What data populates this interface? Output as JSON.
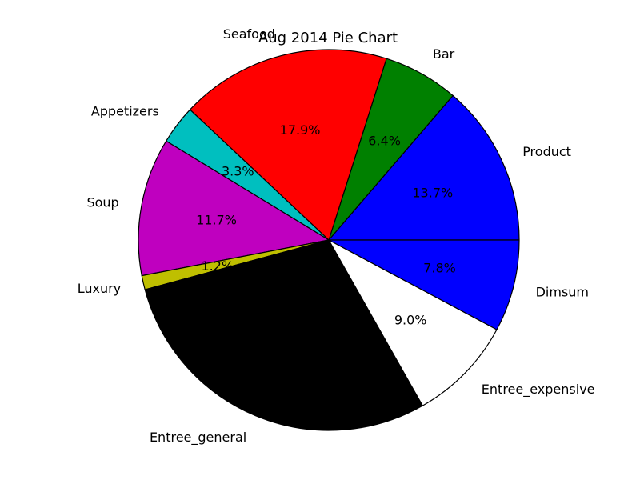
{
  "chart_data": {
    "type": "pie",
    "title": "Aug 2014 Pie Chart",
    "start_angle_deg": 0,
    "direction": "counterclockwise",
    "slices": [
      {
        "label": "Product",
        "value": 13.7,
        "pct_label": "13.7%",
        "color": "#0000ff"
      },
      {
        "label": "Bar",
        "value": 6.4,
        "pct_label": "6.4%",
        "color": "#008000"
      },
      {
        "label": "Seafood",
        "value": 17.9,
        "pct_label": "17.9%",
        "color": "#ff0000"
      },
      {
        "label": "Appetizers",
        "value": 3.3,
        "pct_label": "3.3%",
        "color": "#00bfbf"
      },
      {
        "label": "Soup",
        "value": 11.7,
        "pct_label": "11.7%",
        "color": "#bf00bf"
      },
      {
        "label": "Luxury",
        "value": 1.2,
        "pct_label": "1.2%",
        "color": "#bfbf00"
      },
      {
        "label": "Entree_general",
        "value": 29.0,
        "pct_label": "",
        "color": "#000000"
      },
      {
        "label": "Entree_expensive",
        "value": 9.0,
        "pct_label": "9.0%",
        "color": "#ffffff"
      },
      {
        "label": "Dimsum",
        "value": 7.8,
        "pct_label": "7.8%",
        "color": "#0000ff"
      }
    ]
  }
}
